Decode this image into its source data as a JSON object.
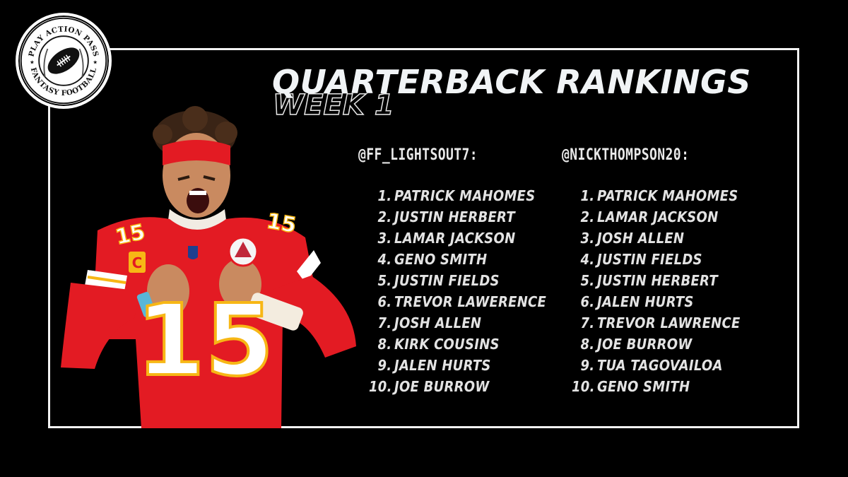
{
  "logo": {
    "top_text": "PLAY ACTION PASS",
    "bottom_text": "FANTASY FOOTBALL",
    "icon": "football-icon"
  },
  "header": {
    "title": "QUARTERBACK RANKINGS",
    "subtitle": "WEEK 1"
  },
  "player_image": {
    "icon": "quarterback-photo",
    "jersey_number": "15",
    "captain_patch": "C",
    "colors": {
      "jersey": "#e31b23",
      "trim": "#f7b715",
      "headband": "#e31b23",
      "skin": "#c98a60"
    }
  },
  "rankings": [
    {
      "handle": "@FF_LIGHTSOUT7:",
      "players": [
        {
          "rank": "1.",
          "name": "PATRICK MAHOMES"
        },
        {
          "rank": "2.",
          "name": "JUSTIN HERBERT"
        },
        {
          "rank": "3.",
          "name": "LAMAR JACKSON"
        },
        {
          "rank": "4.",
          "name": "GENO SMITH"
        },
        {
          "rank": "5.",
          "name": "JUSTIN FIELDS"
        },
        {
          "rank": "6.",
          "name": "TREVOR LAWERENCE"
        },
        {
          "rank": "7.",
          "name": "JOSH ALLEN"
        },
        {
          "rank": "8.",
          "name": "KIRK COUSINS"
        },
        {
          "rank": "9.",
          "name": "JALEN HURTS"
        },
        {
          "rank": "10.",
          "name": "JOE BURROW"
        }
      ]
    },
    {
      "handle": "@NICKTHOMPSON20:",
      "players": [
        {
          "rank": "1.",
          "name": "PATRICK MAHOMES"
        },
        {
          "rank": "2.",
          "name": "LAMAR JACKSON"
        },
        {
          "rank": "3.",
          "name": "JOSH ALLEN"
        },
        {
          "rank": "4.",
          "name": "JUSTIN FIELDS"
        },
        {
          "rank": "5.",
          "name": "JUSTIN HERBERT"
        },
        {
          "rank": "6.",
          "name": "JALEN HURTS"
        },
        {
          "rank": "7.",
          "name": "TREVOR LAWRENCE"
        },
        {
          "rank": "8.",
          "name": "JOE BURROW"
        },
        {
          "rank": "9.",
          "name": "TUA TAGOVAILOA"
        },
        {
          "rank": "10.",
          "name": "GENO SMITH"
        }
      ]
    }
  ]
}
